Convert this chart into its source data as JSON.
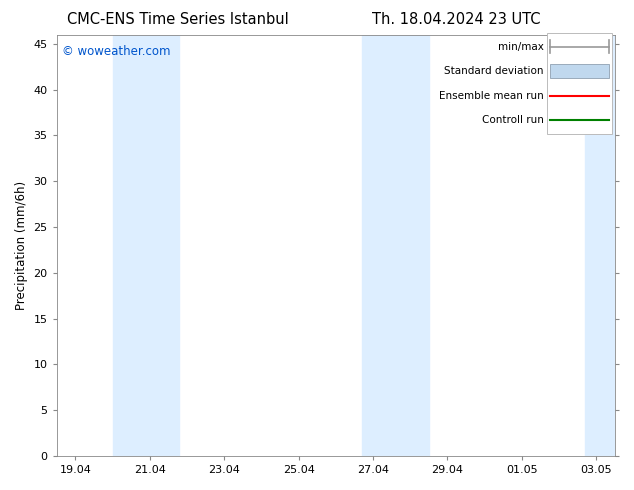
{
  "title_left": "CMC-ENS Time Series Istanbul",
  "title_right": "Th. 18.04.2024 23 UTC",
  "ylabel": "Precipitation (mm/6h)",
  "watermark": "© woweather.com",
  "ylim": [
    0,
    46
  ],
  "yticks": [
    0,
    5,
    10,
    15,
    20,
    25,
    30,
    35,
    40,
    45
  ],
  "xlim": [
    -0.5,
    14.5
  ],
  "xtick_labels": [
    "19.04",
    "21.04",
    "23.04",
    "25.04",
    "27.04",
    "29.04",
    "01.05",
    "03.05"
  ],
  "xtick_positions": [
    0,
    2,
    4,
    6,
    8,
    10,
    12,
    14
  ],
  "blue_bands": [
    {
      "start": 1.0,
      "end": 2.8
    },
    {
      "start": 7.7,
      "end": 9.5
    },
    {
      "start": 13.7,
      "end": 14.5
    }
  ],
  "band_color": "#ddeeff",
  "background_color": "#ffffff",
  "watermark_color": "#0055cc",
  "title_fontsize": 10.5,
  "axis_fontsize": 8.5,
  "tick_fontsize": 8,
  "legend_fontsize": 7.5,
  "legend_color_minmax": "#999999",
  "legend_color_stddev": "#c0d8ee",
  "legend_color_ensemble": "#ff0000",
  "legend_color_control": "#008000"
}
